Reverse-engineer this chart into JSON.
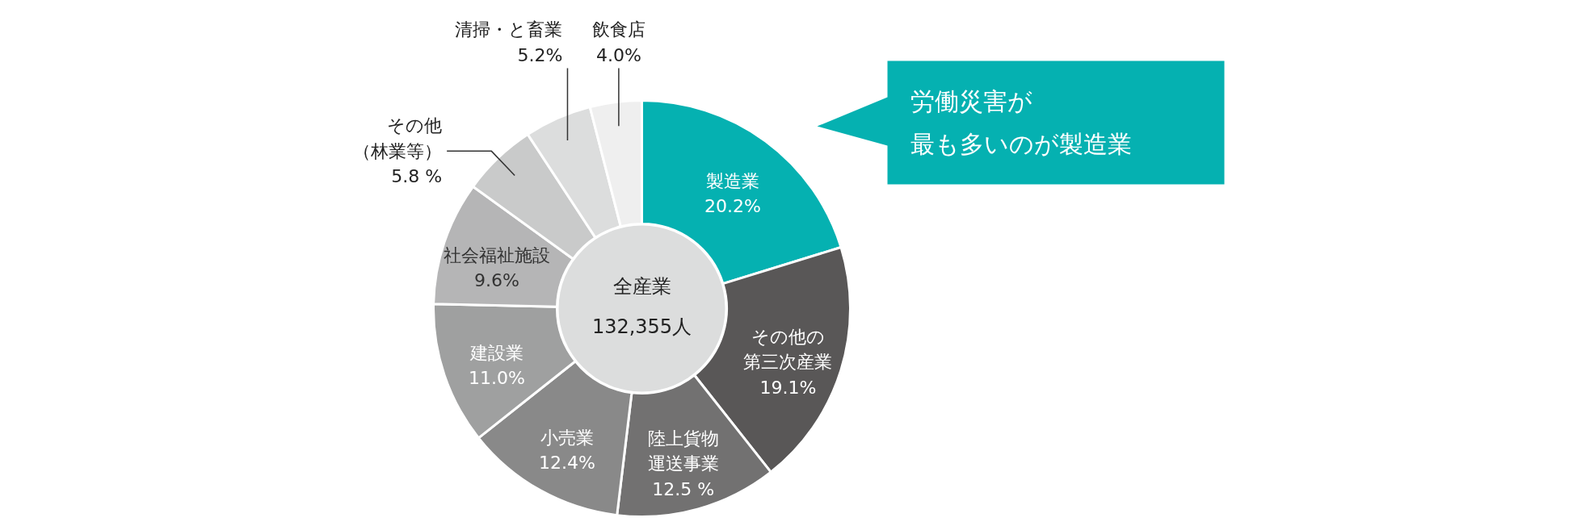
{
  "chart_data": {
    "type": "donut",
    "categories": [
      "製造業",
      "その他の第三次産業",
      "陸上貨物運送事業",
      "小売業",
      "建設業",
      "社会福祉施設",
      "その他（林業等）",
      "清掃・と畜業",
      "飲食店"
    ],
    "values": [
      20.2,
      19.1,
      12.5,
      12.4,
      11.0,
      9.6,
      5.8,
      5.2,
      4.0
    ],
    "value_labels": [
      "20.2%",
      "19.1%",
      "12.5 %",
      "12.4%",
      "11.0%",
      "9.6%",
      "5.8 %",
      "5.2%",
      "4.0%"
    ],
    "colors": [
      "#05b1b1",
      "#595757",
      "#727171",
      "#898989",
      "#9fa0a0",
      "#b5b5b6",
      "#c9caca",
      "#dcdddd",
      "#efefef"
    ],
    "annotations": [
      "全産業",
      "132,355人",
      "労働災害が最も多いのが製造業"
    ],
    "legend": false
  }
}
